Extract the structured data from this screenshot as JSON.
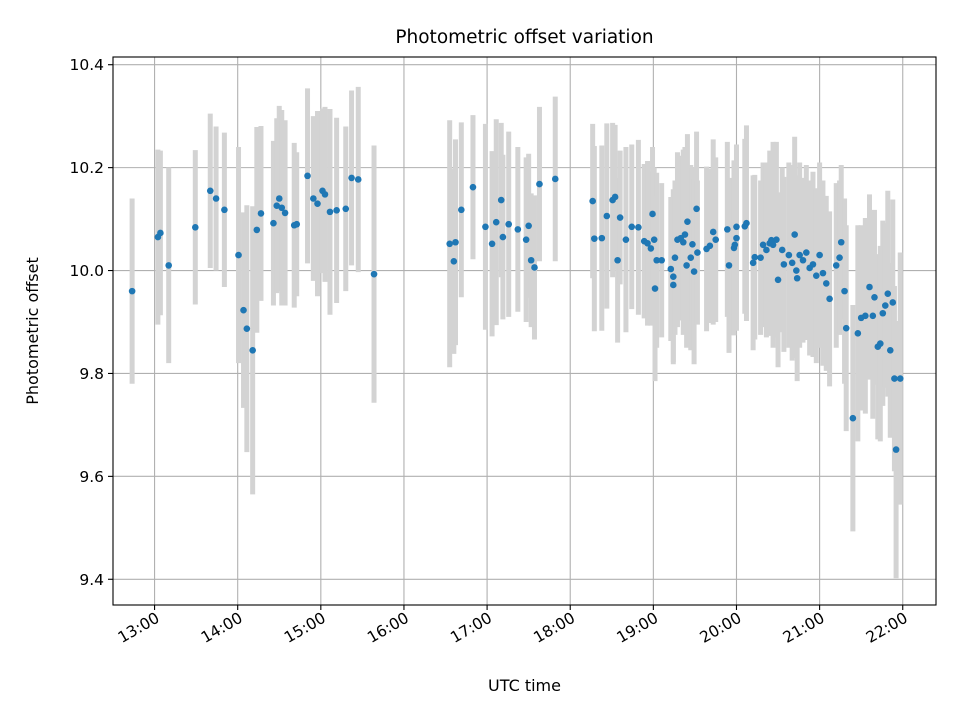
{
  "chart_data": {
    "type": "scatter",
    "title": "Photometric offset variation",
    "xlabel": "UTC time",
    "ylabel": "Photometric offset",
    "x_unit": "hours UTC",
    "xlim": [
      12.5,
      22.4
    ],
    "ylim": [
      9.35,
      10.415
    ],
    "x_ticks": [
      {
        "value": 13,
        "label": "13:00"
      },
      {
        "value": 14,
        "label": "14:00"
      },
      {
        "value": 15,
        "label": "15:00"
      },
      {
        "value": 16,
        "label": "16:00"
      },
      {
        "value": 17,
        "label": "17:00"
      },
      {
        "value": 18,
        "label": "18:00"
      },
      {
        "value": 19,
        "label": "19:00"
      },
      {
        "value": 20,
        "label": "20:00"
      },
      {
        "value": 21,
        "label": "21:00"
      },
      {
        "value": 22,
        "label": "22:00"
      }
    ],
    "y_ticks": [
      {
        "value": 9.4,
        "label": "9.4"
      },
      {
        "value": 9.6,
        "label": "9.6"
      },
      {
        "value": 9.8,
        "label": "9.8"
      },
      {
        "value": 10.0,
        "label": "10.0"
      },
      {
        "value": 10.2,
        "label": "10.2"
      },
      {
        "value": 10.4,
        "label": "10.4"
      }
    ],
    "grid": true,
    "marker_color": "#1f77b4",
    "errorbar_color": "#d3d3d3",
    "series": [
      {
        "points": [
          [
            12.73,
            9.96,
            0.18
          ],
          [
            13.04,
            10.065,
            0.17
          ],
          [
            13.07,
            10.073,
            0.16
          ],
          [
            13.17,
            10.01,
            0.19
          ],
          [
            13.49,
            10.084,
            0.15
          ],
          [
            13.67,
            10.155,
            0.15
          ],
          [
            13.74,
            10.14,
            0.14
          ],
          [
            13.84,
            10.118,
            0.15
          ],
          [
            14.01,
            10.03,
            0.21
          ],
          [
            14.07,
            9.923,
            0.19
          ],
          [
            14.11,
            9.887,
            0.24
          ],
          [
            14.18,
            9.845,
            0.28
          ],
          [
            14.23,
            10.079,
            0.2
          ],
          [
            14.28,
            10.111,
            0.17
          ],
          [
            14.43,
            10.092,
            0.16
          ],
          [
            14.47,
            10.126,
            0.17
          ],
          [
            14.5,
            10.14,
            0.18
          ],
          [
            14.53,
            10.122,
            0.19
          ],
          [
            14.57,
            10.112,
            0.18
          ],
          [
            14.68,
            10.088,
            0.16
          ],
          [
            14.71,
            10.09,
            0.14
          ],
          [
            14.84,
            10.184,
            0.17
          ],
          [
            14.91,
            10.14,
            0.16
          ],
          [
            14.96,
            10.13,
            0.18
          ],
          [
            15.02,
            10.155,
            0.16
          ],
          [
            15.05,
            10.148,
            0.17
          ],
          [
            15.11,
            10.114,
            0.2
          ],
          [
            15.19,
            10.117,
            0.18
          ],
          [
            15.3,
            10.12,
            0.16
          ],
          [
            15.37,
            10.18,
            0.17
          ],
          [
            15.45,
            10.177,
            0.18
          ],
          [
            15.64,
            9.993,
            0.25
          ],
          [
            16.55,
            10.052,
            0.24
          ],
          [
            16.6,
            10.018,
            0.18
          ],
          [
            16.62,
            10.055,
            0.2
          ],
          [
            16.69,
            10.118,
            0.17
          ],
          [
            16.83,
            10.162,
            0.14
          ],
          [
            16.98,
            10.085,
            0.2
          ],
          [
            17.06,
            10.052,
            0.18
          ],
          [
            17.11,
            10.094,
            0.2
          ],
          [
            17.17,
            10.137,
            0.15
          ],
          [
            17.19,
            10.065,
            0.16
          ],
          [
            17.26,
            10.09,
            0.18
          ],
          [
            17.37,
            10.08,
            0.16
          ],
          [
            17.47,
            10.06,
            0.16
          ],
          [
            17.5,
            10.087,
            0.14
          ],
          [
            17.53,
            10.02,
            0.13
          ],
          [
            17.57,
            10.006,
            0.14
          ],
          [
            17.63,
            10.168,
            0.15
          ],
          [
            17.82,
            10.178,
            0.16
          ],
          [
            18.27,
            10.135,
            0.15
          ],
          [
            18.29,
            10.062,
            0.18
          ],
          [
            18.38,
            10.063,
            0.18
          ],
          [
            18.44,
            10.106,
            0.18
          ],
          [
            18.51,
            10.137,
            0.15
          ],
          [
            18.54,
            10.143,
            0.14
          ],
          [
            18.57,
            10.02,
            0.16
          ],
          [
            18.6,
            10.103,
            0.13
          ],
          [
            18.67,
            10.06,
            0.18
          ],
          [
            18.74,
            10.085,
            0.16
          ],
          [
            18.82,
            10.084,
            0.17
          ],
          [
            18.89,
            10.057,
            0.15
          ],
          [
            18.93,
            10.053,
            0.16
          ],
          [
            18.97,
            10.043,
            0.15
          ],
          [
            18.99,
            10.11,
            0.13
          ],
          [
            19.01,
            10.06,
            0.14
          ],
          [
            19.04,
            10.02,
            0.17
          ],
          [
            19.02,
            9.965,
            0.18
          ],
          [
            19.1,
            10.02,
            0.15
          ],
          [
            19.21,
            10.003,
            0.14
          ],
          [
            19.24,
            9.972,
            0.15
          ],
          [
            19.24,
            9.988,
            0.17
          ],
          [
            19.26,
            10.025,
            0.15
          ],
          [
            19.29,
            10.06,
            0.17
          ],
          [
            19.33,
            10.063,
            0.16
          ],
          [
            19.36,
            10.055,
            0.18
          ],
          [
            19.38,
            10.07,
            0.17
          ],
          [
            19.4,
            10.01,
            0.16
          ],
          [
            19.41,
            10.095,
            0.17
          ],
          [
            19.45,
            10.025,
            0.18
          ],
          [
            19.47,
            10.051,
            0.15
          ],
          [
            19.49,
            9.998,
            0.18
          ],
          [
            19.52,
            10.12,
            0.15
          ],
          [
            19.53,
            10.035,
            0.14
          ],
          [
            19.64,
            10.042,
            0.16
          ],
          [
            19.68,
            10.048,
            0.15
          ],
          [
            19.72,
            10.075,
            0.18
          ],
          [
            19.75,
            10.06,
            0.16
          ],
          [
            19.89,
            10.08,
            0.17
          ],
          [
            19.91,
            10.01,
            0.17
          ],
          [
            19.97,
            10.044,
            0.17
          ],
          [
            19.98,
            10.05,
            0.16
          ],
          [
            20.0,
            10.063,
            0.18
          ],
          [
            20.0,
            10.085,
            0.16
          ],
          [
            20.1,
            10.086,
            0.17
          ],
          [
            20.12,
            10.092,
            0.19
          ],
          [
            20.2,
            10.015,
            0.17
          ],
          [
            20.22,
            10.026,
            0.16
          ],
          [
            20.29,
            10.025,
            0.15
          ],
          [
            20.32,
            10.05,
            0.16
          ],
          [
            20.36,
            10.04,
            0.17
          ],
          [
            20.4,
            10.053,
            0.18
          ],
          [
            20.42,
            10.059,
            0.17
          ],
          [
            20.44,
            10.05,
            0.2
          ],
          [
            20.48,
            10.06,
            0.19
          ],
          [
            20.5,
            9.982,
            0.17
          ],
          [
            20.55,
            10.04,
            0.16
          ],
          [
            20.57,
            10.012,
            0.17
          ],
          [
            20.63,
            10.03,
            0.18
          ],
          [
            20.67,
            10.015,
            0.19
          ],
          [
            20.7,
            10.07,
            0.19
          ],
          [
            20.72,
            10.0,
            0.17
          ],
          [
            20.73,
            9.985,
            0.2
          ],
          [
            20.76,
            10.03,
            0.18
          ],
          [
            20.8,
            10.02,
            0.16
          ],
          [
            20.84,
            10.035,
            0.17
          ],
          [
            20.88,
            10.005,
            0.17
          ],
          [
            20.92,
            10.012,
            0.18
          ],
          [
            20.96,
            9.99,
            0.17
          ],
          [
            21.0,
            10.03,
            0.18
          ],
          [
            21.04,
            9.995,
            0.18
          ],
          [
            21.08,
            9.975,
            0.17
          ],
          [
            21.12,
            9.945,
            0.17
          ],
          [
            21.2,
            10.01,
            0.16
          ],
          [
            21.24,
            10.025,
            0.15
          ],
          [
            21.26,
            10.055,
            0.15
          ],
          [
            21.3,
            9.96,
            0.18
          ],
          [
            21.32,
            9.888,
            0.2
          ],
          [
            21.4,
            9.713,
            0.22
          ],
          [
            21.46,
            9.878,
            0.21
          ],
          [
            21.5,
            9.908,
            0.18
          ],
          [
            21.55,
            9.912,
            0.19
          ],
          [
            21.6,
            9.968,
            0.18
          ],
          [
            21.64,
            9.912,
            0.2
          ],
          [
            21.66,
            9.948,
            0.17
          ],
          [
            21.7,
            9.852,
            0.18
          ],
          [
            21.73,
            9.858,
            0.19
          ],
          [
            21.76,
            9.917,
            0.18
          ],
          [
            21.79,
            9.932,
            0.16
          ],
          [
            21.82,
            9.955,
            0.2
          ],
          [
            21.85,
            9.845,
            0.17
          ],
          [
            21.88,
            9.938,
            0.2
          ],
          [
            21.9,
            9.79,
            0.18
          ],
          [
            21.92,
            9.652,
            0.25
          ],
          [
            21.97,
            9.79,
            0.245
          ]
        ]
      }
    ]
  }
}
